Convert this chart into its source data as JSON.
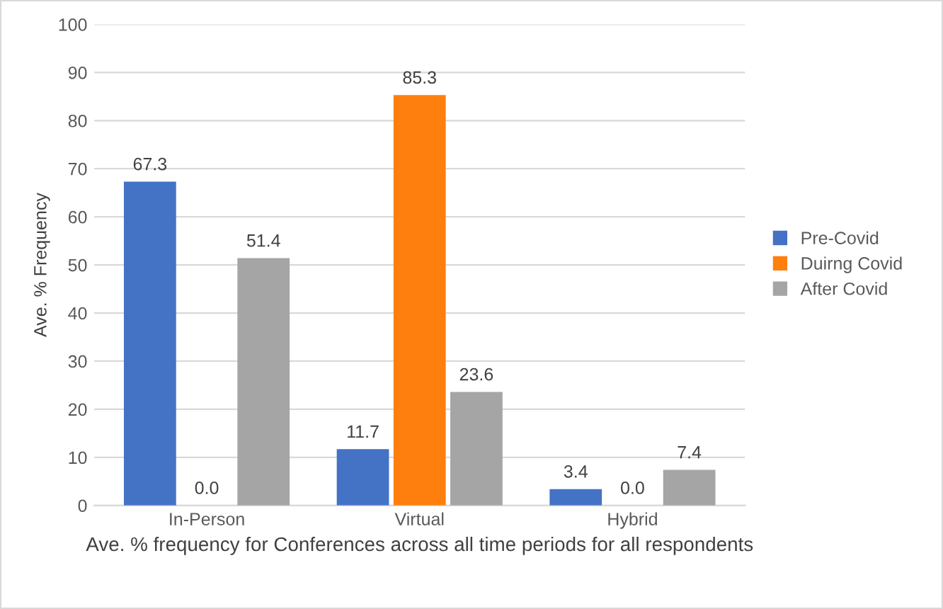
{
  "chart_data": {
    "type": "bar",
    "xlabel": "Ave. % frequency for Conferences across all time periods for all respondents",
    "ylabel": "Ave. % Frequency",
    "categories": [
      "In-Person",
      "Virtual",
      "Hybrid"
    ],
    "series": [
      {
        "name": "Pre-Covid",
        "color": "#4472c4",
        "values": [
          67.3,
          11.7,
          3.4
        ],
        "value_labels": [
          "67.3",
          "11.7",
          "3.4"
        ]
      },
      {
        "name": "Duirng Covid",
        "color": "#ff7f0e",
        "values": [
          0.0,
          85.3,
          0.0
        ],
        "value_labels": [
          "0.0",
          "85.3",
          "0.0"
        ]
      },
      {
        "name": "After Covid",
        "color": "#a5a5a5",
        "values": [
          51.4,
          23.6,
          7.4
        ],
        "value_labels": [
          "51.4",
          "23.6",
          "7.4"
        ]
      }
    ],
    "ylim": [
      0,
      100
    ],
    "yticks": [
      0,
      10,
      20,
      30,
      40,
      50,
      60,
      70,
      80,
      90,
      100
    ],
    "grid": "y",
    "legend": "right"
  }
}
